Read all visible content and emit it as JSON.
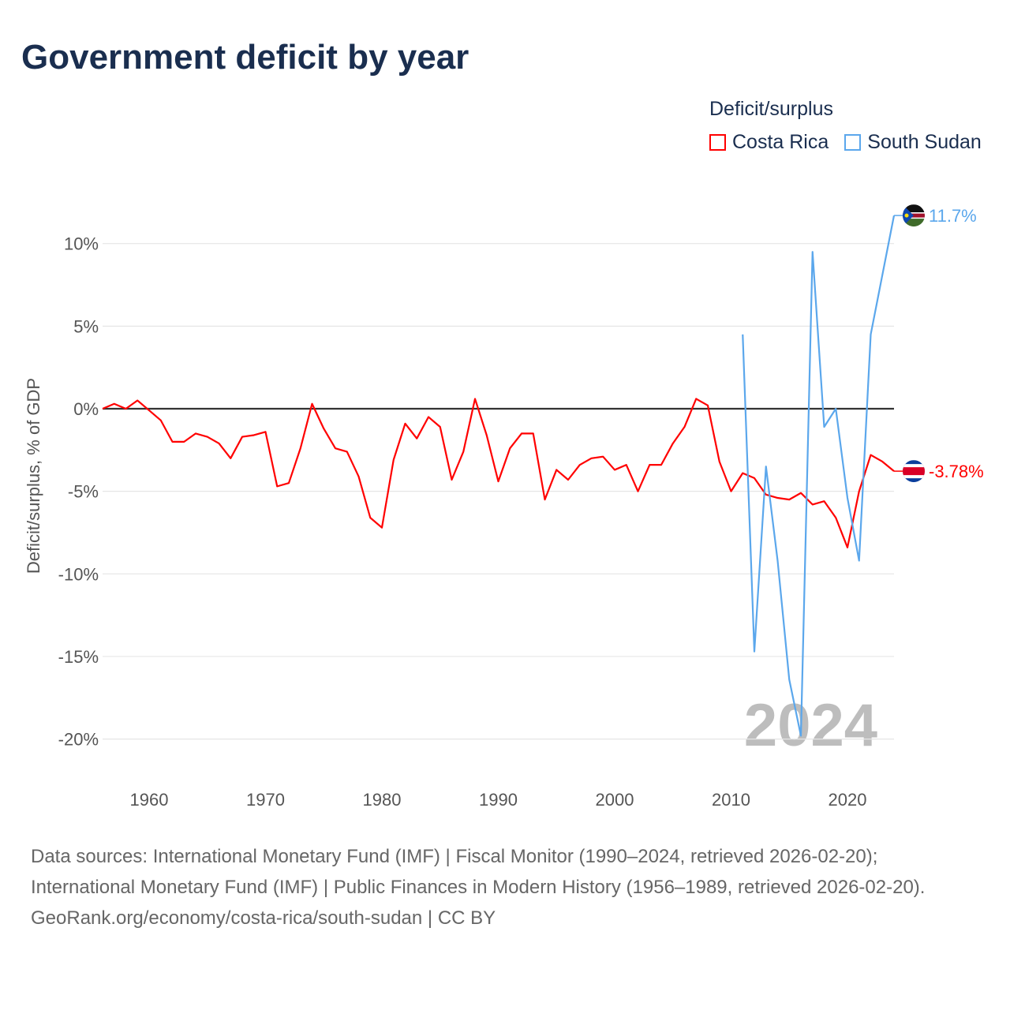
{
  "title": "Government deficit by year",
  "legend": {
    "title": "Deficit/surplus",
    "items": [
      {
        "name": "Costa Rica",
        "color": "#ff0000"
      },
      {
        "name": "South Sudan",
        "color": "#5ba7ec"
      }
    ]
  },
  "footer": {
    "sources": "Data sources: International Monetary Fund (IMF) | Fiscal Monitor (1990–2024, retrieved 2026-02-20); International Monetary Fund (IMF) | Public Finances in Modern History (1956–1989, retrieved 2026-02-20).",
    "credit": "GeoRank.org/economy/costa-rica/south-sudan | CC BY"
  },
  "chart_data": {
    "type": "line",
    "title": "Government deficit by year",
    "xlabel": "",
    "ylabel": "Deficit/surplus, % of GDP",
    "xlim": [
      1956,
      2024
    ],
    "ylim": [
      -22.5,
      12.5
    ],
    "xticks": [
      1960,
      1970,
      1980,
      1990,
      2000,
      2010,
      2020
    ],
    "yticks": [
      10,
      5,
      0,
      -5,
      -10,
      -15,
      -20
    ],
    "ytick_labels": [
      "10%",
      "5%",
      "0%",
      "-5%",
      "-10%",
      "-15%",
      "-20%"
    ],
    "year_watermark": "2024",
    "grid": true,
    "series": [
      {
        "name": "Costa Rica",
        "color": "#ff0000",
        "end_label": "-3.78%",
        "start": 1956,
        "values": [
          0.0,
          0.3,
          0.0,
          0.5,
          -0.1,
          -0.7,
          -2.0,
          -2.0,
          -1.5,
          -1.7,
          -2.1,
          -3.0,
          -1.7,
          -1.6,
          -1.4,
          -4.7,
          -4.5,
          -2.4,
          0.3,
          -1.2,
          -2.4,
          -2.6,
          -4.1,
          -6.6,
          -7.2,
          -3.1,
          -0.9,
          -1.8,
          -0.5,
          -1.1,
          -4.3,
          -2.6,
          0.6,
          -1.6,
          -4.4,
          -2.4,
          -1.5,
          -1.5,
          -5.5,
          -3.7,
          -4.3,
          -3.4,
          -3.0,
          -2.9,
          -3.7,
          -3.4,
          -5.0,
          -3.4,
          -3.4,
          -2.1,
          -1.1,
          0.6,
          0.2,
          -3.2,
          -5.0,
          -3.9,
          -4.2,
          -5.2,
          -5.4,
          -5.5,
          -5.1,
          -5.8,
          -5.6,
          -6.6,
          -8.4,
          -5.0,
          -2.8,
          -3.2,
          -3.78
        ]
      },
      {
        "name": "South Sudan",
        "color": "#5ba7ec",
        "end_label": "11.7%",
        "start": 2011,
        "values": [
          4.5,
          -14.7,
          -3.5,
          -9.2,
          -16.4,
          -19.8,
          9.5,
          -1.1,
          0.0,
          -5.4,
          -9.2,
          4.5,
          8.1,
          11.7
        ]
      }
    ]
  }
}
